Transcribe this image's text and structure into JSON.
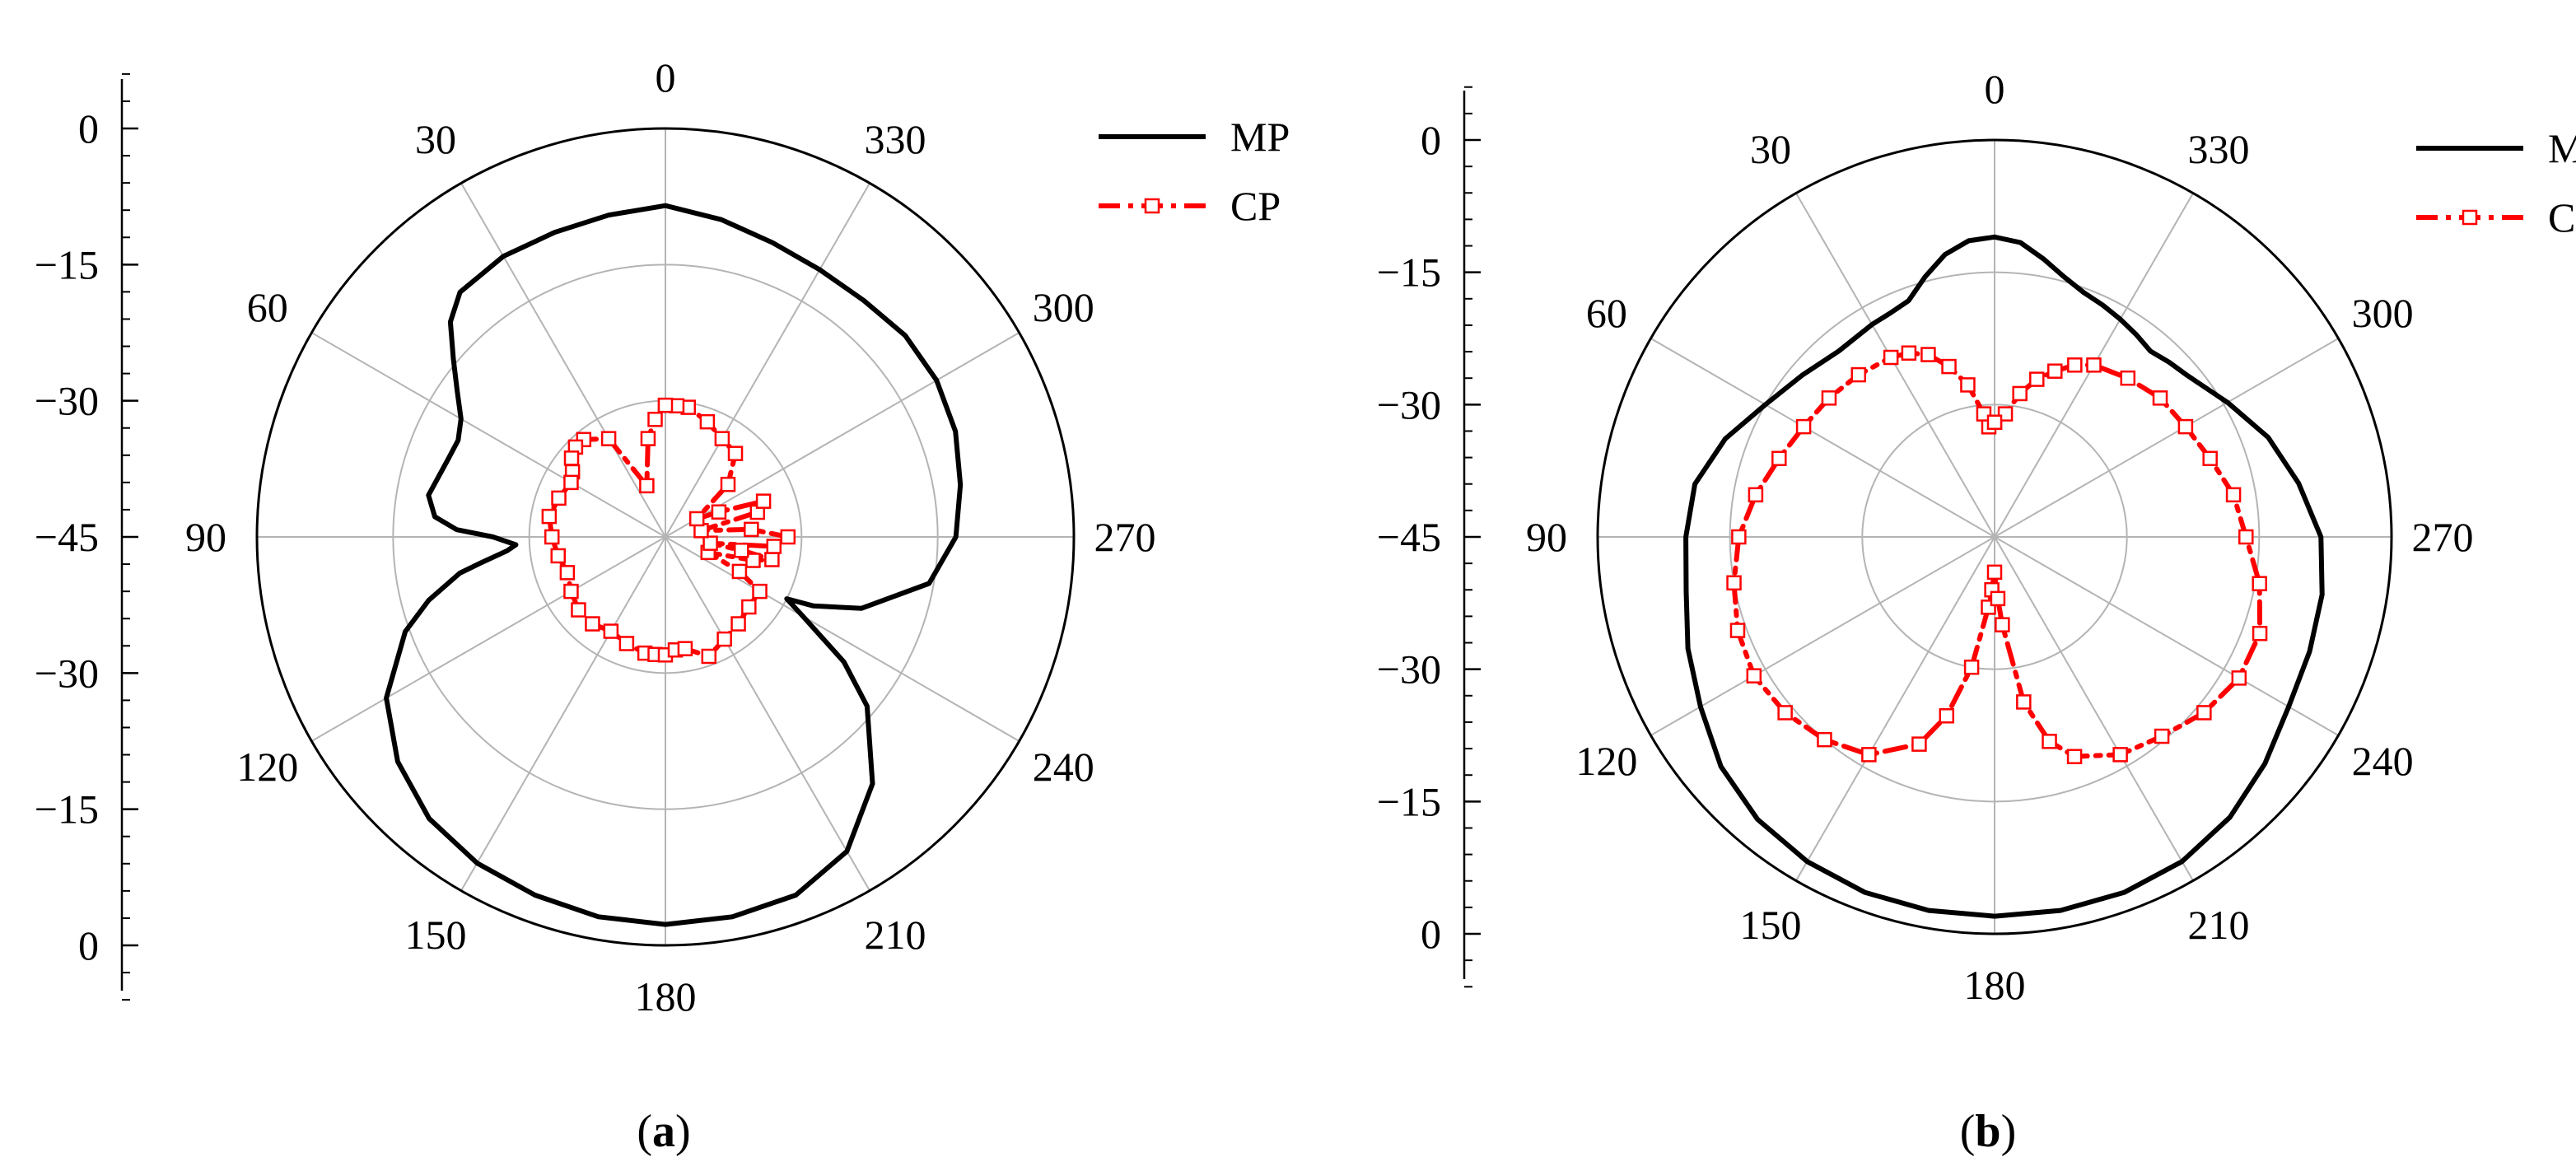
{
  "chart_data": [
    {
      "type": "polar-line",
      "panel_label": "a",
      "angular_labels": [
        "0",
        "30",
        "60",
        "90",
        "120",
        "150",
        "180",
        "210",
        "240",
        "270",
        "300",
        "330"
      ],
      "angle_direction": "counter-clockwise (increasing to the left), 0 at top",
      "radial_axis": {
        "min": -45,
        "max": 0,
        "step": 15,
        "ticks": [
          "0",
          "-15",
          "-30",
          "-45",
          "-30",
          "-15",
          "0"
        ]
      },
      "grid": true,
      "legend_position": "top-right",
      "series": [
        {
          "name": "MP",
          "color": "#000000",
          "style": "solid",
          "angles": [
            0,
            10,
            20,
            30,
            40,
            45,
            50,
            55,
            60,
            65,
            70,
            80,
            85,
            88,
            90,
            93,
            95,
            98,
            100,
            105,
            110,
            120,
            130,
            140,
            150,
            160,
            170,
            180,
            190,
            200,
            210,
            220,
            230,
            235,
            240,
            243,
            245,
            250,
            260,
            270,
            280,
            290,
            300,
            310,
            320,
            330,
            340,
            350,
            360
          ],
          "values": [
            -8.5,
            -9.0,
            -9.3,
            -9.3,
            -9.8,
            -11.5,
            -14.5,
            -17.0,
            -19.0,
            -19.8,
            -19.6,
            -18.5,
            -19.5,
            -22.0,
            -26.0,
            -28.5,
            -27.5,
            -24.5,
            -22.0,
            -18.0,
            -14.5,
            -9.5,
            -6.5,
            -4.5,
            -3.5,
            -3.0,
            -2.5,
            -2.3,
            -2.5,
            -3.0,
            -5.0,
            -9.5,
            -16.0,
            -21.0,
            -27.5,
            -30.0,
            -27.0,
            -22.0,
            -15.5,
            -13.0,
            -12.0,
            -11.0,
            -10.5,
            -10.5,
            -11.0,
            -11.0,
            -10.5,
            -9.5,
            -8.5
          ]
        },
        {
          "name": "CP",
          "color": "#ff0000",
          "style": "dashed-square-markers",
          "angles": [
            0,
            5,
            10,
            20,
            30,
            40,
            45,
            50,
            55,
            60,
            70,
            80,
            90,
            100,
            110,
            120,
            130,
            140,
            150,
            160,
            170,
            175,
            180,
            185,
            190,
            200,
            210,
            220,
            230,
            240,
            245,
            250,
            255,
            258,
            260,
            262,
            265,
            270,
            275,
            280,
            285,
            290,
            295,
            300,
            310,
            320,
            330,
            340,
            350,
            355,
            360
          ],
          "values": [
            -30.5,
            -32.0,
            -34.0,
            -39.0,
            -32.5,
            -31.0,
            -31.0,
            -31.5,
            -32.5,
            -33.0,
            -32.5,
            -32.0,
            -32.5,
            -33.0,
            -33.5,
            -33.0,
            -32.5,
            -32.5,
            -33.0,
            -32.5,
            -32.0,
            -32.0,
            -32.0,
            -32.5,
            -32.5,
            -31.0,
            -32.0,
            -32.5,
            -33.0,
            -33.0,
            -36.0,
            -40.0,
            -35.0,
            -33.0,
            -36.5,
            -40.0,
            -33.0,
            -31.5,
            -35.5,
            -41.0,
            -34.5,
            -33.5,
            -38.5,
            -41.0,
            -36.0,
            -33.0,
            -32.5,
            -31.5,
            -30.5,
            -30.5,
            -30.5
          ]
        }
      ]
    },
    {
      "type": "polar-line",
      "panel_label": "b",
      "angular_labels": [
        "0",
        "30",
        "60",
        "90",
        "120",
        "150",
        "180",
        "210",
        "240",
        "270",
        "300",
        "330"
      ],
      "angle_direction": "counter-clockwise (increasing to the left), 0 at top",
      "radial_axis": {
        "min": -45,
        "max": 0,
        "step": 15,
        "ticks": [
          "0",
          "-15",
          "-30",
          "-45",
          "-30",
          "-15",
          "0"
        ]
      },
      "grid": true,
      "legend_position": "top-right",
      "series": [
        {
          "name": "MP",
          "color": "#000000",
          "style": "solid",
          "angles": [
            0,
            5,
            10,
            15,
            20,
            25,
            30,
            40,
            50,
            60,
            70,
            80,
            90,
            100,
            110,
            120,
            130,
            140,
            150,
            160,
            170,
            180,
            190,
            200,
            210,
            220,
            230,
            240,
            250,
            260,
            270,
            280,
            290,
            300,
            310,
            315,
            320,
            325,
            330,
            335,
            340,
            345,
            350,
            355,
            360
          ],
          "values": [
            -11.0,
            -11.3,
            -12.5,
            -14.5,
            -16.5,
            -17.0,
            -17.2,
            -17.5,
            -16.5,
            -15.0,
            -12.5,
            -10.5,
            -10.0,
            -9.5,
            -8.0,
            -6.5,
            -4.5,
            -3.2,
            -2.5,
            -2.1,
            -2.0,
            -2.0,
            -2.0,
            -2.1,
            -2.5,
            -3.5,
            -5.0,
            -6.5,
            -7.0,
            -7.3,
            -8.0,
            -10.0,
            -12.0,
            -14.5,
            -16.5,
            -17.0,
            -17.5,
            -17.0,
            -16.5,
            -16.0,
            -15.5,
            -14.5,
            -13.0,
            -11.5,
            -11.0
          ]
        },
        {
          "name": "CP",
          "color": "#ff0000",
          "style": "dashed-square-markers",
          "angles": [
            0,
            3,
            5,
            10,
            15,
            20,
            25,
            30,
            40,
            50,
            60,
            70,
            80,
            90,
            100,
            110,
            120,
            130,
            140,
            150,
            160,
            165,
            170,
            175,
            177,
            180,
            183,
            185,
            190,
            195,
            200,
            210,
            220,
            230,
            240,
            250,
            260,
            270,
            280,
            290,
            300,
            310,
            320,
            330,
            335,
            340,
            345,
            350,
            355,
            360
          ],
          "values": [
            -32.0,
            -32.5,
            -31.0,
            -27.5,
            -25.0,
            -23.0,
            -22.0,
            -21.5,
            -21.0,
            -20.5,
            -20.0,
            -19.0,
            -17.5,
            -16.0,
            -15.0,
            -14.0,
            -13.5,
            -14.0,
            -15.0,
            -16.5,
            -20.0,
            -24.0,
            -30.0,
            -37.0,
            -39.0,
            -41.0,
            -38.0,
            -35.0,
            -26.0,
            -21.0,
            -18.5,
            -16.5,
            -15.5,
            -14.0,
            -13.0,
            -13.0,
            -14.5,
            -16.5,
            -17.5,
            -19.0,
            -20.0,
            -20.5,
            -21.5,
            -22.5,
            -23.5,
            -25.0,
            -26.5,
            -28.5,
            -31.0,
            -32.0
          ]
        }
      ]
    }
  ]
}
